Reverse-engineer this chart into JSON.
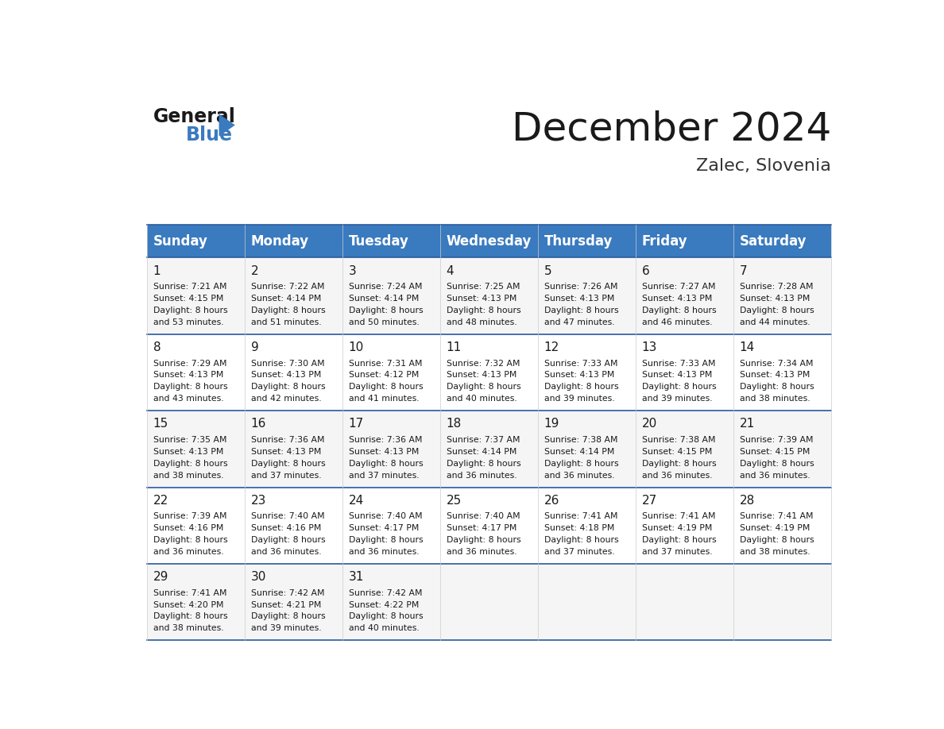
{
  "title": "December 2024",
  "subtitle": "Zalec, Slovenia",
  "header_bg_color": "#3a7abf",
  "header_text_color": "#ffffff",
  "day_names": [
    "Sunday",
    "Monday",
    "Tuesday",
    "Wednesday",
    "Thursday",
    "Friday",
    "Saturday"
  ],
  "header_line_color": "#2a5a9f",
  "cell_line_color": "#cccccc",
  "days": [
    {
      "day": 1,
      "col": 0,
      "row": 0,
      "sunrise": "7:21 AM",
      "sunset": "4:15 PM",
      "daylight_minutes": "53"
    },
    {
      "day": 2,
      "col": 1,
      "row": 0,
      "sunrise": "7:22 AM",
      "sunset": "4:14 PM",
      "daylight_minutes": "51"
    },
    {
      "day": 3,
      "col": 2,
      "row": 0,
      "sunrise": "7:24 AM",
      "sunset": "4:14 PM",
      "daylight_minutes": "50"
    },
    {
      "day": 4,
      "col": 3,
      "row": 0,
      "sunrise": "7:25 AM",
      "sunset": "4:13 PM",
      "daylight_minutes": "48"
    },
    {
      "day": 5,
      "col": 4,
      "row": 0,
      "sunrise": "7:26 AM",
      "sunset": "4:13 PM",
      "daylight_minutes": "47"
    },
    {
      "day": 6,
      "col": 5,
      "row": 0,
      "sunrise": "7:27 AM",
      "sunset": "4:13 PM",
      "daylight_minutes": "46"
    },
    {
      "day": 7,
      "col": 6,
      "row": 0,
      "sunrise": "7:28 AM",
      "sunset": "4:13 PM",
      "daylight_minutes": "44"
    },
    {
      "day": 8,
      "col": 0,
      "row": 1,
      "sunrise": "7:29 AM",
      "sunset": "4:13 PM",
      "daylight_minutes": "43"
    },
    {
      "day": 9,
      "col": 1,
      "row": 1,
      "sunrise": "7:30 AM",
      "sunset": "4:13 PM",
      "daylight_minutes": "42"
    },
    {
      "day": 10,
      "col": 2,
      "row": 1,
      "sunrise": "7:31 AM",
      "sunset": "4:12 PM",
      "daylight_minutes": "41"
    },
    {
      "day": 11,
      "col": 3,
      "row": 1,
      "sunrise": "7:32 AM",
      "sunset": "4:13 PM",
      "daylight_minutes": "40"
    },
    {
      "day": 12,
      "col": 4,
      "row": 1,
      "sunrise": "7:33 AM",
      "sunset": "4:13 PM",
      "daylight_minutes": "39"
    },
    {
      "day": 13,
      "col": 5,
      "row": 1,
      "sunrise": "7:33 AM",
      "sunset": "4:13 PM",
      "daylight_minutes": "39"
    },
    {
      "day": 14,
      "col": 6,
      "row": 1,
      "sunrise": "7:34 AM",
      "sunset": "4:13 PM",
      "daylight_minutes": "38"
    },
    {
      "day": 15,
      "col": 0,
      "row": 2,
      "sunrise": "7:35 AM",
      "sunset": "4:13 PM",
      "daylight_minutes": "38"
    },
    {
      "day": 16,
      "col": 1,
      "row": 2,
      "sunrise": "7:36 AM",
      "sunset": "4:13 PM",
      "daylight_minutes": "37"
    },
    {
      "day": 17,
      "col": 2,
      "row": 2,
      "sunrise": "7:36 AM",
      "sunset": "4:13 PM",
      "daylight_minutes": "37"
    },
    {
      "day": 18,
      "col": 3,
      "row": 2,
      "sunrise": "7:37 AM",
      "sunset": "4:14 PM",
      "daylight_minutes": "36"
    },
    {
      "day": 19,
      "col": 4,
      "row": 2,
      "sunrise": "7:38 AM",
      "sunset": "4:14 PM",
      "daylight_minutes": "36"
    },
    {
      "day": 20,
      "col": 5,
      "row": 2,
      "sunrise": "7:38 AM",
      "sunset": "4:15 PM",
      "daylight_minutes": "36"
    },
    {
      "day": 21,
      "col": 6,
      "row": 2,
      "sunrise": "7:39 AM",
      "sunset": "4:15 PM",
      "daylight_minutes": "36"
    },
    {
      "day": 22,
      "col": 0,
      "row": 3,
      "sunrise": "7:39 AM",
      "sunset": "4:16 PM",
      "daylight_minutes": "36"
    },
    {
      "day": 23,
      "col": 1,
      "row": 3,
      "sunrise": "7:40 AM",
      "sunset": "4:16 PM",
      "daylight_minutes": "36"
    },
    {
      "day": 24,
      "col": 2,
      "row": 3,
      "sunrise": "7:40 AM",
      "sunset": "4:17 PM",
      "daylight_minutes": "36"
    },
    {
      "day": 25,
      "col": 3,
      "row": 3,
      "sunrise": "7:40 AM",
      "sunset": "4:17 PM",
      "daylight_minutes": "36"
    },
    {
      "day": 26,
      "col": 4,
      "row": 3,
      "sunrise": "7:41 AM",
      "sunset": "4:18 PM",
      "daylight_minutes": "37"
    },
    {
      "day": 27,
      "col": 5,
      "row": 3,
      "sunrise": "7:41 AM",
      "sunset": "4:19 PM",
      "daylight_minutes": "37"
    },
    {
      "day": 28,
      "col": 6,
      "row": 3,
      "sunrise": "7:41 AM",
      "sunset": "4:19 PM",
      "daylight_minutes": "38"
    },
    {
      "day": 29,
      "col": 0,
      "row": 4,
      "sunrise": "7:41 AM",
      "sunset": "4:20 PM",
      "daylight_minutes": "38"
    },
    {
      "day": 30,
      "col": 1,
      "row": 4,
      "sunrise": "7:42 AM",
      "sunset": "4:21 PM",
      "daylight_minutes": "39"
    },
    {
      "day": 31,
      "col": 2,
      "row": 4,
      "sunrise": "7:42 AM",
      "sunset": "4:22 PM",
      "daylight_minutes": "40"
    }
  ]
}
